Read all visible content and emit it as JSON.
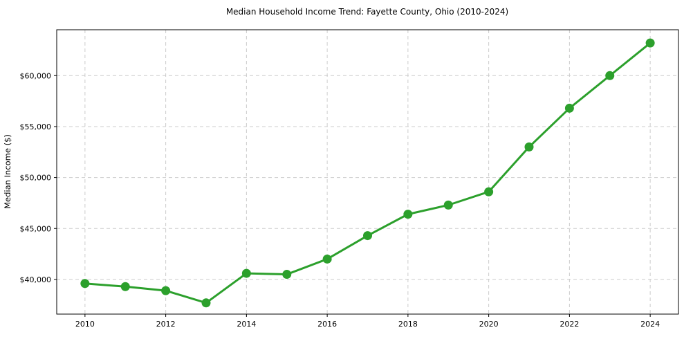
{
  "chart_data": {
    "type": "line",
    "title": "Median Household Income Trend: Fayette County, Ohio (2010-2024)",
    "xlabel": "",
    "ylabel": "Median Income ($)",
    "x": [
      2010,
      2011,
      2012,
      2013,
      2014,
      2015,
      2016,
      2017,
      2018,
      2019,
      2020,
      2021,
      2022,
      2023,
      2024
    ],
    "series": [
      {
        "name": "Median Household Income",
        "values": [
          39600,
          39300,
          38900,
          37700,
          40600,
          40500,
          42000,
          44300,
          46400,
          47300,
          48600,
          53000,
          56800,
          60000,
          63200
        ]
      }
    ],
    "xlim": [
      2009.3,
      2024.7
    ],
    "ylim": [
      36600,
      64500
    ],
    "x_ticks": [
      2010,
      2012,
      2014,
      2016,
      2018,
      2020,
      2022,
      2024
    ],
    "x_tick_labels": [
      "2010",
      "2012",
      "2014",
      "2016",
      "2018",
      "2020",
      "2022",
      "2024"
    ],
    "y_ticks": [
      40000,
      45000,
      50000,
      55000,
      60000
    ],
    "y_tick_labels": [
      "$40,000",
      "$45,000",
      "$50,000",
      "$55,000",
      "$60,000"
    ],
    "grid": true,
    "grid_style": "dashed",
    "legend_position": "none",
    "line_color": "#2ca02c",
    "marker_color": "#2ca02c",
    "grid_color": "#cccccc",
    "spine_color": "#000000",
    "background_color": "#ffffff"
  }
}
